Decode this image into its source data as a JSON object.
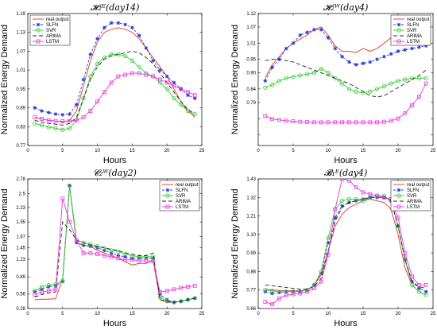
{
  "styles": {
    "real output": {
      "color": "#e8332a",
      "dash": "",
      "marker": "none"
    },
    "SLFN": {
      "color": "#2f3fd6",
      "dash": "3,2",
      "marker": "star"
    },
    "SVR": {
      "color": "#33cc33",
      "dash": "",
      "marker": "circle"
    },
    "ARIMA": {
      "color": "#222222",
      "dash": "5,3",
      "marker": "none"
    },
    "LSTM": {
      "color": "#e83ae0",
      "dash": "",
      "marker": "square"
    }
  },
  "chart_data": [
    {
      "type": "line",
      "title": "𝓗₂ᴱ(day14)",
      "xlabel": "Hours",
      "ylabel": "Normalized Energy Demand",
      "xlim": [
        0,
        25
      ],
      "ylim": [
        0.77,
        1.19
      ],
      "xticks": [
        0,
        5,
        10,
        15,
        20,
        25
      ],
      "yticks": [
        0.77,
        0.83,
        0.89,
        0.95,
        1.01,
        1.07,
        1.13,
        1.19
      ],
      "ytick_labels": [
        "0.77",
        "0.83",
        "0.89",
        "0.95",
        "1.01",
        "1.07",
        "1.13",
        "1.19"
      ],
      "legend": "top-left",
      "x": [
        1,
        2,
        3,
        4,
        5,
        6,
        7,
        8,
        9,
        10,
        11,
        12,
        13,
        14,
        15,
        16,
        17,
        18,
        19,
        20,
        21,
        22,
        23,
        24
      ],
      "series": [
        {
          "name": "real output",
          "values": [
            0.86,
            0.855,
            0.85,
            0.848,
            0.845,
            0.85,
            0.88,
            0.96,
            1.04,
            1.1,
            1.13,
            1.14,
            1.145,
            1.14,
            1.13,
            1.11,
            1.08,
            1.05,
            1.02,
            0.99,
            0.95,
            0.91,
            0.88,
            0.86
          ]
        },
        {
          "name": "SLFN",
          "values": [
            0.89,
            0.88,
            0.875,
            0.87,
            0.868,
            0.87,
            0.9,
            0.98,
            1.06,
            1.11,
            1.145,
            1.16,
            1.16,
            1.155,
            1.145,
            1.12,
            1.08,
            1.04,
            1.01,
            0.99,
            0.97,
            0.95,
            0.93,
            0.92
          ]
        },
        {
          "name": "SVR",
          "values": [
            0.84,
            0.835,
            0.828,
            0.825,
            0.82,
            0.825,
            0.85,
            0.92,
            0.99,
            1.03,
            1.05,
            1.06,
            1.06,
            1.055,
            1.04,
            1.02,
            1.0,
            0.99,
            0.97,
            0.95,
            0.92,
            0.9,
            0.88,
            0.87
          ]
        },
        {
          "name": "ARIMA",
          "values": [
            0.85,
            0.845,
            0.84,
            0.838,
            0.835,
            0.84,
            0.86,
            0.92,
            0.98,
            1.02,
            1.045,
            1.055,
            1.06,
            1.065,
            1.07,
            1.065,
            1.05,
            1.03,
            1.0,
            0.97,
            0.94,
            0.91,
            0.885,
            0.87
          ]
        },
        {
          "name": "LSTM",
          "values": [
            0.86,
            0.855,
            0.85,
            0.848,
            0.847,
            0.848,
            0.85,
            0.86,
            0.88,
            0.91,
            0.94,
            0.97,
            0.99,
            0.995,
            1.0,
            1.0,
            0.995,
            0.99,
            0.98,
            0.97,
            0.96,
            0.95,
            0.94,
            0.93
          ]
        }
      ]
    },
    {
      "type": "line",
      "title": "𝓗₂ᵂ(day4)",
      "xlabel": "Hours",
      "ylabel": "Normalized Energy Demand",
      "xlim": [
        0,
        25
      ],
      "ylim": [
        0.63,
        1.12
      ],
      "xticks": [
        0,
        5,
        10,
        15,
        20,
        25
      ],
      "yticks": [
        0.67,
        0.73,
        0.79,
        0.84,
        0.9,
        0.95,
        1.01,
        1.07,
        1.12
      ],
      "ytick_labels": [
        "",
        "",
        "0.79",
        "0.84",
        "0.90",
        "0.95",
        "1.01",
        "1.07",
        "1.12"
      ],
      "legend": "top-right",
      "x": [
        1,
        2,
        3,
        4,
        5,
        6,
        7,
        8,
        9,
        10,
        11,
        12,
        13,
        14,
        15,
        16,
        17,
        18,
        19,
        20,
        21,
        22,
        23,
        24
      ],
      "series": [
        {
          "name": "real output",
          "values": [
            0.88,
            0.93,
            0.96,
            0.99,
            1.01,
            1.025,
            1.04,
            1.06,
            1.07,
            1.04,
            1.0,
            0.98,
            0.98,
            0.975,
            0.99,
            0.98,
            0.99,
            1.01,
            1.03,
            1.03,
            1.02,
            1.03,
            1.035,
            1.03
          ]
        },
        {
          "name": "SLFN",
          "values": [
            0.87,
            0.92,
            0.95,
            0.99,
            1.01,
            1.04,
            1.05,
            1.06,
            1.06,
            1.03,
            0.99,
            0.96,
            0.94,
            0.93,
            0.935,
            0.94,
            0.95,
            0.96,
            0.97,
            0.98,
            0.985,
            0.99,
            0.995,
            1.0
          ]
        },
        {
          "name": "SVR",
          "values": [
            0.845,
            0.855,
            0.87,
            0.88,
            0.885,
            0.89,
            0.895,
            0.9,
            0.915,
            0.9,
            0.88,
            0.86,
            0.84,
            0.83,
            0.825,
            0.83,
            0.84,
            0.85,
            0.86,
            0.87,
            0.875,
            0.88,
            0.88,
            0.88
          ]
        },
        {
          "name": "ARIMA",
          "values": [
            0.945,
            0.95,
            0.95,
            0.945,
            0.94,
            0.93,
            0.92,
            0.91,
            0.9,
            0.89,
            0.88,
            0.87,
            0.86,
            0.845,
            0.83,
            0.815,
            0.81,
            0.815,
            0.83,
            0.845,
            0.86,
            0.875,
            0.89,
            0.91
          ]
        },
        {
          "name": "LSTM",
          "values": [
            0.74,
            0.728,
            0.725,
            0.722,
            0.72,
            0.718,
            0.717,
            0.716,
            0.716,
            0.716,
            0.716,
            0.716,
            0.716,
            0.716,
            0.716,
            0.716,
            0.716,
            0.718,
            0.722,
            0.73,
            0.75,
            0.78,
            0.81,
            0.86
          ]
        }
      ]
    },
    {
      "type": "line",
      "title": "𝓒₂ᵂ(day2)",
      "xlabel": "Hours",
      "ylabel": "Normalized Energy Demand",
      "xlim": [
        0,
        25
      ],
      "ylim": [
        0.28,
        2.78
      ],
      "xticks": [
        0,
        5,
        10,
        15,
        20,
        25
      ],
      "yticks": [
        0.28,
        0.56,
        0.89,
        1.23,
        1.45,
        1.67,
        1.95,
        2.23,
        2.5,
        2.78
      ],
      "ytick_labels": [
        "0.28",
        "0.56",
        "0.89",
        "1.23",
        "1.45",
        "1.67",
        "1.95",
        "2.23",
        "2.5",
        "2.78"
      ],
      "legend": "top-right",
      "x": [
        1,
        2,
        3,
        4,
        5,
        6,
        7,
        8,
        9,
        10,
        11,
        12,
        13,
        14,
        15,
        16,
        17,
        18,
        19,
        20,
        21,
        22,
        23,
        24
      ],
      "series": [
        {
          "name": "real output",
          "values": [
            0.45,
            0.46,
            0.46,
            0.47,
            0.85,
            2.65,
            1.55,
            1.5,
            1.48,
            1.4,
            1.35,
            1.3,
            1.25,
            1.18,
            1.12,
            1.15,
            1.15,
            1.2,
            0.45,
            0.4,
            0.4,
            0.42,
            0.45,
            0.48
          ]
        },
        {
          "name": "SLFN",
          "values": [
            0.6,
            0.65,
            0.7,
            0.72,
            0.8,
            2.65,
            1.55,
            1.5,
            1.48,
            1.45,
            1.4,
            1.35,
            1.3,
            1.28,
            1.25,
            1.25,
            1.25,
            1.25,
            0.55,
            0.45,
            0.4,
            0.42,
            0.45,
            0.48
          ]
        },
        {
          "name": "SVR",
          "values": [
            0.62,
            0.7,
            0.73,
            0.75,
            0.82,
            2.65,
            1.6,
            1.55,
            1.52,
            1.48,
            1.45,
            1.4,
            1.38,
            1.33,
            1.3,
            1.28,
            1.28,
            1.28,
            0.5,
            0.42,
            0.4,
            0.42,
            0.45,
            0.48
          ]
        },
        {
          "name": "ARIMA",
          "values": [
            0.5,
            0.55,
            0.58,
            0.6,
            1.95,
            1.8,
            1.6,
            1.55,
            1.5,
            1.48,
            1.45,
            1.42,
            1.4,
            1.35,
            1.33,
            1.3,
            1.3,
            1.35,
            0.45,
            0.42,
            0.4,
            0.42,
            0.45,
            0.48
          ]
        },
        {
          "name": "LSTM",
          "values": [
            0.55,
            0.6,
            0.62,
            0.65,
            2.4,
            1.95,
            1.6,
            1.35,
            1.35,
            1.33,
            1.3,
            1.28,
            1.25,
            1.22,
            1.22,
            1.2,
            1.2,
            1.2,
            0.6,
            0.62,
            0.65,
            0.68,
            0.7,
            0.72
          ]
        }
      ]
    },
    {
      "type": "line",
      "title": "𝓑₁ᴱ(day4)",
      "xlabel": "Hours",
      "ylabel": "Normalized Energy Demand",
      "xlim": [
        0,
        25
      ],
      "ylim": [
        0.66,
        1.43
      ],
      "xticks": [
        0,
        5,
        10,
        15,
        20,
        25
      ],
      "yticks": [
        0.66,
        0.77,
        0.88,
        0.99,
        1.1,
        1.21,
        1.32,
        1.43
      ],
      "ytick_labels": [
        "0.66",
        "0.77",
        "0.88",
        "0.99",
        "1.10",
        "1.21",
        "1.32",
        "1.43"
      ],
      "legend": "top-right",
      "x": [
        1,
        2,
        3,
        4,
        5,
        6,
        7,
        8,
        9,
        10,
        11,
        12,
        13,
        14,
        15,
        16,
        17,
        18,
        19,
        20,
        21,
        22,
        23,
        24
      ],
      "series": [
        {
          "name": "real output",
          "values": [
            0.775,
            0.77,
            0.768,
            0.766,
            0.765,
            0.765,
            0.77,
            0.8,
            0.86,
            1.0,
            1.15,
            1.22,
            1.26,
            1.28,
            1.3,
            1.31,
            1.3,
            1.29,
            1.25,
            1.1,
            0.9,
            0.8,
            0.76,
            0.74
          ]
        },
        {
          "name": "SLFN",
          "values": [
            0.76,
            0.75,
            0.755,
            0.76,
            0.762,
            0.762,
            0.77,
            0.8,
            0.87,
            1.05,
            1.2,
            1.27,
            1.29,
            1.3,
            1.31,
            1.32,
            1.32,
            1.32,
            1.3,
            1.15,
            0.95,
            0.82,
            0.78,
            0.76
          ]
        },
        {
          "name": "SVR",
          "values": [
            0.77,
            0.765,
            0.76,
            0.76,
            0.76,
            0.76,
            0.77,
            0.8,
            0.88,
            1.08,
            1.25,
            1.3,
            1.31,
            1.31,
            1.3,
            1.32,
            1.33,
            1.33,
            1.3,
            1.15,
            0.95,
            0.8,
            0.76,
            0.74
          ]
        },
        {
          "name": "ARIMA",
          "values": [
            0.8,
            0.795,
            0.79,
            0.785,
            0.78,
            0.775,
            0.775,
            0.79,
            0.84,
            1.0,
            1.18,
            1.26,
            1.29,
            1.3,
            1.31,
            1.32,
            1.32,
            1.32,
            1.3,
            1.15,
            0.95,
            0.82,
            0.79,
            0.78
          ]
        },
        {
          "name": "LSTM",
          "values": [
            0.7,
            0.685,
            0.72,
            0.74,
            0.745,
            0.75,
            0.76,
            0.78,
            0.82,
            0.98,
            1.25,
            1.43,
            1.42,
            1.38,
            1.35,
            1.34,
            1.33,
            1.32,
            1.31,
            1.2,
            0.99,
            0.85,
            0.8,
            0.8
          ]
        }
      ]
    }
  ]
}
